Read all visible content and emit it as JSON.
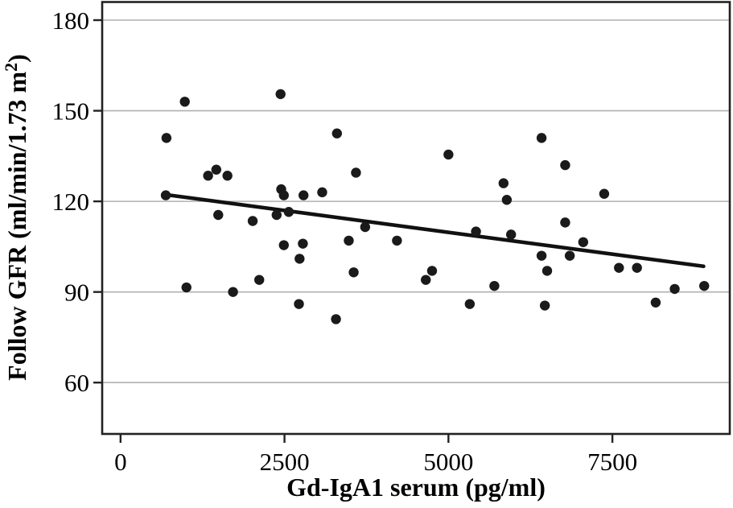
{
  "chart_data": {
    "type": "scatter",
    "title": "",
    "xlabel": "Gd-IgA1 serum (pg/ml)",
    "ylabel": "Follow GFR (ml/min/1.73 m²)",
    "ylabel_parts": {
      "pre": "Follow GFR (ml/min/1.73 m",
      "sup": "2",
      "post": ")"
    },
    "x_ticks": [
      0,
      2500,
      5000,
      7500
    ],
    "y_ticks": [
      60,
      90,
      120,
      150,
      180
    ],
    "xlim": [
      -280,
      9290
    ],
    "ylim": [
      43,
      186
    ],
    "grid": "horizontal-only",
    "legend": "none",
    "points": [
      [
        690,
        122
      ],
      [
        700,
        141
      ],
      [
        980,
        153
      ],
      [
        1005,
        91.5
      ],
      [
        1335,
        128.5
      ],
      [
        1460,
        130.5
      ],
      [
        1490,
        115.5
      ],
      [
        1630,
        128.5
      ],
      [
        1715,
        90
      ],
      [
        2015,
        113.5
      ],
      [
        2115,
        94
      ],
      [
        2380,
        115.5
      ],
      [
        2440,
        155.5
      ],
      [
        2450,
        124
      ],
      [
        2490,
        122
      ],
      [
        2490,
        105.5
      ],
      [
        2565,
        116.5
      ],
      [
        2720,
        86
      ],
      [
        2730,
        101
      ],
      [
        2780,
        106
      ],
      [
        2790,
        122
      ],
      [
        3075,
        123
      ],
      [
        3285,
        81
      ],
      [
        3300,
        142.5
      ],
      [
        3480,
        107
      ],
      [
        3555,
        96.5
      ],
      [
        3590,
        129.5
      ],
      [
        3730,
        111.5
      ],
      [
        4215,
        107
      ],
      [
        4655,
        94
      ],
      [
        4750,
        97
      ],
      [
        5000,
        135.5
      ],
      [
        5325,
        86
      ],
      [
        5420,
        110
      ],
      [
        5700,
        92
      ],
      [
        5840,
        126
      ],
      [
        5890,
        120.5
      ],
      [
        5955,
        109
      ],
      [
        6420,
        141
      ],
      [
        6420,
        102
      ],
      [
        6470,
        85.5
      ],
      [
        6505,
        97
      ],
      [
        6780,
        132
      ],
      [
        6780,
        113
      ],
      [
        6850,
        102
      ],
      [
        7055,
        106.5
      ],
      [
        7375,
        122.5
      ],
      [
        7600,
        98
      ],
      [
        7875,
        98
      ],
      [
        8160,
        86.5
      ],
      [
        8450,
        91
      ],
      [
        8900,
        92
      ]
    ],
    "trend_line": {
      "x1": 694,
      "y1": 122.2,
      "x2": 8890,
      "y2": 98.5
    }
  },
  "colors": {
    "background": "#ffffff",
    "point": "#1a1a1a",
    "trend": "#111111",
    "grid": "#b0b0b0",
    "frame": "#222222",
    "text": "#000000"
  }
}
